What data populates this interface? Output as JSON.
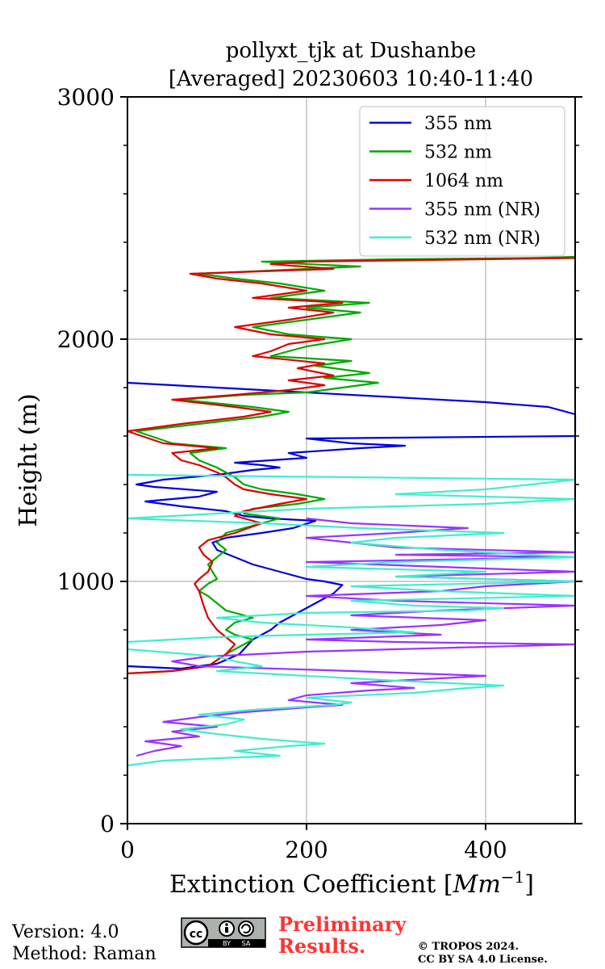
{
  "chart_data": {
    "type": "line",
    "title": [
      "pollyxt_tjk at Dushanbe",
      "[Averaged] 20230603 10:40-11:40"
    ],
    "xlabel": "Extinction Coefficient [Mm⁻¹]",
    "xlabel_main": "Extinction Coefficient [",
    "xlabel_unit": "Mm",
    "xlabel_exp": "−1",
    "xlabel_close": "]",
    "ylabel": "Height (m)",
    "xlim": [
      0,
      500
    ],
    "ylim": [
      0,
      3000
    ],
    "xticks": [
      0,
      200,
      400
    ],
    "yticks": [
      0,
      1000,
      2000,
      3000
    ],
    "grid": true,
    "legend_position": "top-right",
    "series": [
      {
        "name": "355 nm",
        "color": "#0000dd",
        "points": [
          [
            0,
            650
          ],
          [
            60,
            640
          ],
          [
            100,
            660
          ],
          [
            125,
            700
          ],
          [
            140,
            760
          ],
          [
            150,
            780
          ],
          [
            160,
            800
          ],
          [
            170,
            830
          ],
          [
            185,
            860
          ],
          [
            200,
            890
          ],
          [
            215,
            920
          ],
          [
            230,
            950
          ],
          [
            240,
            985
          ],
          [
            220,
            1000
          ],
          [
            200,
            1010
          ],
          [
            180,
            1030
          ],
          [
            160,
            1050
          ],
          [
            140,
            1070
          ],
          [
            120,
            1100
          ],
          [
            100,
            1130
          ],
          [
            95,
            1160
          ],
          [
            110,
            1180
          ],
          [
            150,
            1200
          ],
          [
            185,
            1220
          ],
          [
            210,
            1250
          ],
          [
            160,
            1260
          ],
          [
            130,
            1270
          ],
          [
            110,
            1290
          ],
          [
            60,
            1310
          ],
          [
            20,
            1330
          ],
          [
            80,
            1350
          ],
          [
            100,
            1370
          ],
          [
            30,
            1390
          ],
          [
            10,
            1400
          ],
          [
            40,
            1420
          ],
          [
            100,
            1440
          ],
          [
            140,
            1460
          ],
          [
            170,
            1470
          ],
          [
            150,
            1480
          ],
          [
            120,
            1490
          ],
          [
            160,
            1500
          ],
          [
            200,
            1510
          ],
          [
            180,
            1530
          ],
          [
            260,
            1550
          ],
          [
            310,
            1560
          ],
          [
            250,
            1570
          ],
          [
            200,
            1590
          ],
          [
            500,
            1600
          ],
          [
            500,
            1690
          ],
          [
            470,
            1720
          ],
          [
            400,
            1740
          ],
          [
            300,
            1760
          ],
          [
            200,
            1780
          ],
          [
            100,
            1800
          ],
          [
            0,
            1820
          ]
        ]
      },
      {
        "name": "532 nm",
        "color": "#00aa00",
        "points": [
          [
            0,
            620
          ],
          [
            50,
            630
          ],
          [
            90,
            650
          ],
          [
            110,
            700
          ],
          [
            130,
            740
          ],
          [
            140,
            760
          ],
          [
            120,
            780
          ],
          [
            110,
            800
          ],
          [
            120,
            830
          ],
          [
            140,
            850
          ],
          [
            110,
            880
          ],
          [
            100,
            910
          ],
          [
            90,
            940
          ],
          [
            80,
            960
          ],
          [
            90,
            990
          ],
          [
            100,
            1010
          ],
          [
            95,
            1040
          ],
          [
            90,
            1070
          ],
          [
            100,
            1100
          ],
          [
            110,
            1130
          ],
          [
            100,
            1160
          ],
          [
            110,
            1200
          ],
          [
            140,
            1230
          ],
          [
            170,
            1260
          ],
          [
            130,
            1280
          ],
          [
            140,
            1300
          ],
          [
            190,
            1320
          ],
          [
            220,
            1340
          ],
          [
            190,
            1360
          ],
          [
            150,
            1380
          ],
          [
            130,
            1400
          ],
          [
            120,
            1430
          ],
          [
            110,
            1450
          ],
          [
            100,
            1470
          ],
          [
            80,
            1500
          ],
          [
            70,
            1530
          ],
          [
            110,
            1550
          ],
          [
            50,
            1570
          ],
          [
            10,
            1620
          ],
          [
            80,
            1650
          ],
          [
            150,
            1680
          ],
          [
            180,
            1700
          ],
          [
            140,
            1720
          ],
          [
            60,
            1750
          ],
          [
            130,
            1770
          ],
          [
            200,
            1780
          ],
          [
            240,
            1800
          ],
          [
            280,
            1820
          ],
          [
            220,
            1840
          ],
          [
            270,
            1860
          ],
          [
            210,
            1890
          ],
          [
            250,
            1910
          ],
          [
            160,
            1930
          ],
          [
            180,
            1950
          ],
          [
            200,
            1970
          ],
          [
            250,
            2000
          ],
          [
            180,
            2020
          ],
          [
            140,
            2050
          ],
          [
            200,
            2080
          ],
          [
            260,
            2110
          ],
          [
            200,
            2130
          ],
          [
            270,
            2150
          ],
          [
            160,
            2170
          ],
          [
            220,
            2200
          ],
          [
            170,
            2230
          ],
          [
            120,
            2250
          ],
          [
            80,
            2270
          ],
          [
            260,
            2300
          ],
          [
            200,
            2310
          ],
          [
            150,
            2320
          ],
          [
            300,
            2330
          ],
          [
            450,
            2335
          ],
          [
            500,
            2340
          ]
        ]
      },
      {
        "name": "1064 nm",
        "color": "#dd0000",
        "points": [
          [
            0,
            620
          ],
          [
            50,
            630
          ],
          [
            90,
            650
          ],
          [
            110,
            700
          ],
          [
            120,
            740
          ],
          [
            110,
            770
          ],
          [
            100,
            800
          ],
          [
            90,
            850
          ],
          [
            85,
            900
          ],
          [
            80,
            960
          ],
          [
            75,
            990
          ],
          [
            80,
            1010
          ],
          [
            90,
            1040
          ],
          [
            95,
            1080
          ],
          [
            85,
            1110
          ],
          [
            80,
            1140
          ],
          [
            90,
            1170
          ],
          [
            120,
            1200
          ],
          [
            150,
            1240
          ],
          [
            120,
            1270
          ],
          [
            130,
            1290
          ],
          [
            170,
            1320
          ],
          [
            200,
            1340
          ],
          [
            160,
            1360
          ],
          [
            130,
            1380
          ],
          [
            120,
            1400
          ],
          [
            110,
            1430
          ],
          [
            100,
            1450
          ],
          [
            80,
            1480
          ],
          [
            60,
            1500
          ],
          [
            50,
            1530
          ],
          [
            100,
            1550
          ],
          [
            40,
            1570
          ],
          [
            0,
            1620
          ],
          [
            60,
            1650
          ],
          [
            130,
            1680
          ],
          [
            160,
            1700
          ],
          [
            120,
            1720
          ],
          [
            50,
            1750
          ],
          [
            120,
            1770
          ],
          [
            180,
            1790
          ],
          [
            220,
            1810
          ],
          [
            180,
            1830
          ],
          [
            230,
            1850
          ],
          [
            190,
            1880
          ],
          [
            220,
            1900
          ],
          [
            140,
            1930
          ],
          [
            160,
            1950
          ],
          [
            180,
            1980
          ],
          [
            220,
            2000
          ],
          [
            160,
            2020
          ],
          [
            120,
            2050
          ],
          [
            180,
            2080
          ],
          [
            230,
            2110
          ],
          [
            180,
            2130
          ],
          [
            240,
            2150
          ],
          [
            140,
            2170
          ],
          [
            200,
            2200
          ],
          [
            150,
            2230
          ],
          [
            100,
            2250
          ],
          [
            70,
            2270
          ],
          [
            230,
            2290
          ],
          [
            160,
            2310
          ],
          [
            200,
            2320
          ],
          [
            400,
            2330
          ],
          [
            500,
            2335
          ]
        ]
      },
      {
        "name": "355 nm (NR)",
        "color": "#9933ff",
        "points": [
          [
            10,
            280
          ],
          [
            30,
            300
          ],
          [
            60,
            320
          ],
          [
            20,
            340
          ],
          [
            80,
            360
          ],
          [
            50,
            380
          ],
          [
            100,
            400
          ],
          [
            40,
            420
          ],
          [
            80,
            440
          ],
          [
            130,
            460
          ],
          [
            200,
            480
          ],
          [
            240,
            490
          ],
          [
            180,
            510
          ],
          [
            200,
            530
          ],
          [
            270,
            550
          ],
          [
            320,
            560
          ],
          [
            250,
            580
          ],
          [
            350,
            600
          ],
          [
            400,
            610
          ],
          [
            250,
            630
          ],
          [
            80,
            650
          ],
          [
            50,
            670
          ],
          [
            90,
            690
          ],
          [
            200,
            710
          ],
          [
            400,
            730
          ],
          [
            500,
            740
          ],
          [
            300,
            750
          ],
          [
            200,
            760
          ],
          [
            350,
            780
          ],
          [
            250,
            800
          ],
          [
            350,
            820
          ],
          [
            400,
            840
          ],
          [
            250,
            860
          ],
          [
            350,
            880
          ],
          [
            500,
            900
          ],
          [
            300,
            920
          ],
          [
            200,
            940
          ],
          [
            350,
            960
          ],
          [
            400,
            980
          ],
          [
            500,
            1000
          ],
          [
            300,
            1020
          ],
          [
            500,
            1040
          ],
          [
            350,
            1060
          ],
          [
            200,
            1080
          ],
          [
            500,
            1100
          ],
          [
            300,
            1110
          ],
          [
            500,
            1120
          ],
          [
            300,
            1140
          ],
          [
            250,
            1160
          ],
          [
            200,
            1180
          ],
          [
            300,
            1200
          ],
          [
            380,
            1220
          ],
          [
            250,
            1240
          ],
          [
            200,
            1260
          ]
        ]
      },
      {
        "name": "532 nm (NR)",
        "color": "#40eecc",
        "points": [
          [
            0,
            240
          ],
          [
            40,
            260
          ],
          [
            100,
            270
          ],
          [
            170,
            280
          ],
          [
            120,
            300
          ],
          [
            180,
            320
          ],
          [
            220,
            330
          ],
          [
            150,
            350
          ],
          [
            100,
            370
          ],
          [
            60,
            390
          ],
          [
            110,
            410
          ],
          [
            130,
            430
          ],
          [
            80,
            450
          ],
          [
            140,
            470
          ],
          [
            230,
            490
          ],
          [
            250,
            500
          ],
          [
            200,
            520
          ],
          [
            320,
            540
          ],
          [
            380,
            560
          ],
          [
            420,
            570
          ],
          [
            300,
            590
          ],
          [
            200,
            610
          ],
          [
            100,
            630
          ],
          [
            150,
            650
          ],
          [
            120,
            670
          ],
          [
            100,
            690
          ],
          [
            0,
            720
          ],
          [
            0,
            750
          ],
          [
            100,
            770
          ],
          [
            200,
            780
          ],
          [
            320,
            790
          ],
          [
            250,
            810
          ],
          [
            150,
            830
          ],
          [
            100,
            850
          ],
          [
            200,
            870
          ],
          [
            380,
            880
          ],
          [
            420,
            890
          ],
          [
            320,
            900
          ],
          [
            250,
            920
          ],
          [
            500,
            940
          ],
          [
            350,
            960
          ],
          [
            250,
            980
          ],
          [
            500,
            1000
          ],
          [
            300,
            1020
          ],
          [
            400,
            1040
          ],
          [
            200,
            1060
          ],
          [
            300,
            1080
          ],
          [
            500,
            1100
          ],
          [
            350,
            1130
          ],
          [
            250,
            1160
          ],
          [
            300,
            1180
          ],
          [
            420,
            1200
          ],
          [
            260,
            1220
          ],
          [
            150,
            1240
          ],
          [
            0,
            1260
          ],
          [
            200,
            1300
          ],
          [
            400,
            1320
          ],
          [
            500,
            1340
          ],
          [
            300,
            1360
          ],
          [
            400,
            1380
          ],
          [
            500,
            1420
          ],
          [
            0,
            1440
          ]
        ]
      }
    ]
  },
  "footer": {
    "version": "Version: 4.0",
    "method": "Method: Raman",
    "preliminary": [
      "Preliminary",
      "Results."
    ],
    "copyright": [
      "© TROPOS 2024.",
      "CC BY SA 4.0 License."
    ],
    "badge_text": [
      "BY",
      "SA"
    ]
  },
  "colors": {
    "grid": "#b0b0b0",
    "axis": "#000000",
    "preliminary": "#ff3333"
  }
}
